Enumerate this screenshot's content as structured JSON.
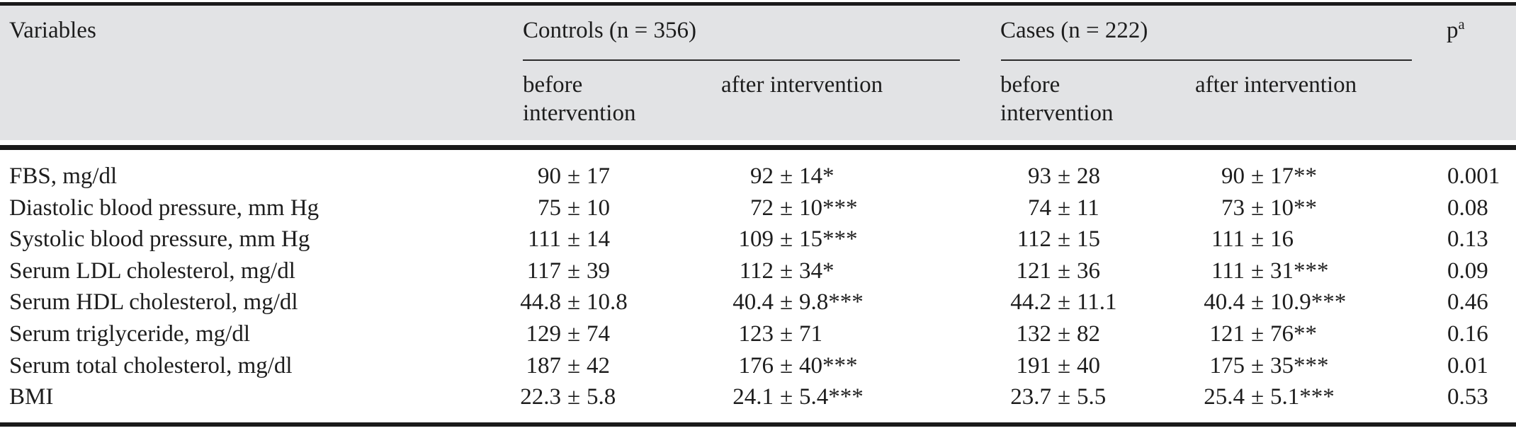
{
  "colors": {
    "header_band_bg": "#e2e3e5",
    "text": "#1d1d1d",
    "thick_rule": "#1a1a1a",
    "thin_rule": "#2b2b2b"
  },
  "table": {
    "columns_header": {
      "variables": "Variables",
      "groups": [
        {
          "label": "Controls (n = 356)",
          "subcolumns": [
            "before intervention",
            "after intervention"
          ]
        },
        {
          "label": "Cases (n = 222)",
          "subcolumns": [
            "before intervention",
            "after intervention"
          ]
        }
      ],
      "p": {
        "base": "p",
        "superscript": "a"
      }
    },
    "rows": [
      {
        "variable": "FBS, mg/dl",
        "values": [
          "90 ± 17",
          "92 ± 14*",
          "93 ± 28",
          "90 ± 17**"
        ],
        "p": "0.001"
      },
      {
        "variable": "Diastolic blood pressure, mm Hg",
        "values": [
          "75 ± 10",
          "72 ± 10***",
          "74 ± 11",
          "73 ± 10**"
        ],
        "p": "0.08"
      },
      {
        "variable": "Systolic blood pressure, mm Hg",
        "values": [
          "111 ± 14",
          "109 ± 15***",
          "112 ± 15",
          "111 ± 16"
        ],
        "p": "0.13"
      },
      {
        "variable": "Serum LDL cholesterol, mg/dl",
        "values": [
          "117 ± 39",
          "112 ± 34*",
          "121 ± 36",
          "111 ± 31***"
        ],
        "p": "0.09"
      },
      {
        "variable": "Serum HDL cholesterol, mg/dl",
        "values": [
          "44.8 ± 10.8",
          "40.4 ± 9.8***",
          "44.2 ± 11.1",
          "40.4 ± 10.9***"
        ],
        "p": "0.46"
      },
      {
        "variable": "Serum triglyceride, mg/dl",
        "values": [
          "129 ± 74",
          "123 ± 71",
          "132 ± 82",
          "121 ± 76**"
        ],
        "p": "0.16"
      },
      {
        "variable": "Serum total cholesterol, mg/dl",
        "values": [
          "187 ± 42",
          "176 ± 40***",
          "191 ± 40",
          "175 ± 35***"
        ],
        "p": "0.01"
      },
      {
        "variable": "BMI",
        "values": [
          "22.3 ± 5.8",
          "24.1 ± 5.4***",
          "23.7 ± 5.5",
          "25.4 ± 5.1***"
        ],
        "p": "0.53"
      }
    ]
  }
}
